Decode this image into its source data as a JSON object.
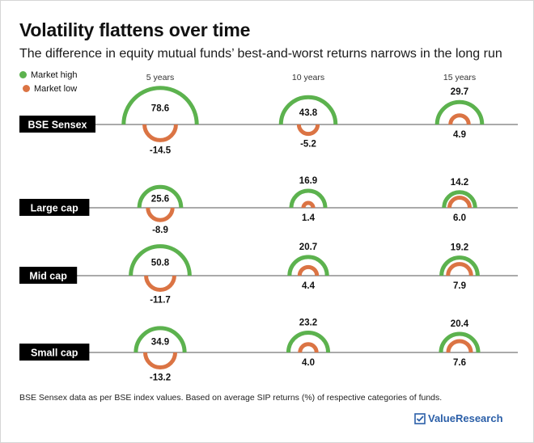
{
  "title": "Volatility flattens over time",
  "subtitle": "The difference in equity mutual funds’ best-and-worst returns narrows in the long run",
  "footnote": "BSE Sensex data as per BSE index values. Based on average SIP returns (%) of respective categories of funds.",
  "brand": "ValueResearch",
  "colors": {
    "high": "#5cb24e",
    "low": "#db7444",
    "axis": "#555555",
    "label_bg": "#000000"
  },
  "chart_data": {
    "type": "semicircle-comparison",
    "columns": [
      "5 years",
      "10 years",
      "15 years"
    ],
    "legend": [
      "Market high",
      "Market low"
    ],
    "rows": [
      {
        "label": "BSE Sensex",
        "high": [
          78.6,
          43.8,
          29.7
        ],
        "low": [
          -14.5,
          -5.2,
          4.9
        ]
      },
      {
        "label": "Large cap",
        "high": [
          25.6,
          16.9,
          14.2
        ],
        "low": [
          -8.9,
          1.4,
          6.0
        ]
      },
      {
        "label": "Mid cap",
        "high": [
          50.8,
          20.7,
          19.2
        ],
        "low": [
          -11.7,
          4.4,
          7.9
        ]
      },
      {
        "label": "Small cap",
        "high": [
          34.9,
          23.2,
          20.4
        ],
        "low": [
          -13.2,
          4.0,
          7.6
        ]
      }
    ]
  }
}
